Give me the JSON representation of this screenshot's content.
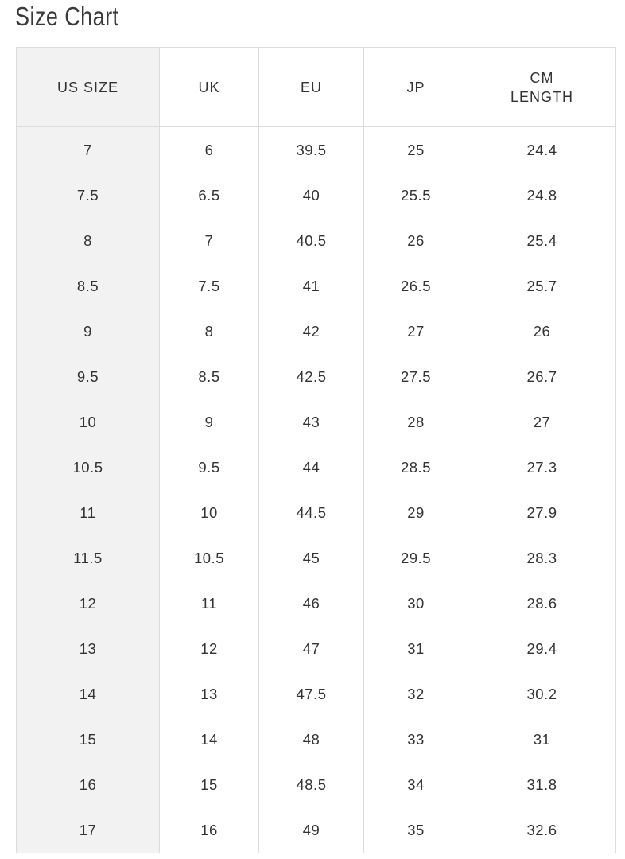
{
  "title": "Size Chart",
  "table": {
    "headers": [
      "US SIZE",
      "UK",
      "EU",
      "JP",
      "CM LENGTH"
    ],
    "rows": [
      [
        "7",
        "6",
        "39.5",
        "25",
        "24.4"
      ],
      [
        "7.5",
        "6.5",
        "40",
        "25.5",
        "24.8"
      ],
      [
        "8",
        "7",
        "40.5",
        "26",
        "25.4"
      ],
      [
        "8.5",
        "7.5",
        "41",
        "26.5",
        "25.7"
      ],
      [
        "9",
        "8",
        "42",
        "27",
        "26"
      ],
      [
        "9.5",
        "8.5",
        "42.5",
        "27.5",
        "26.7"
      ],
      [
        "10",
        "9",
        "43",
        "28",
        "27"
      ],
      [
        "10.5",
        "9.5",
        "44",
        "28.5",
        "27.3"
      ],
      [
        "11",
        "10",
        "44.5",
        "29",
        "27.9"
      ],
      [
        "11.5",
        "10.5",
        "45",
        "29.5",
        "28.3"
      ],
      [
        "12",
        "11",
        "46",
        "30",
        "28.6"
      ],
      [
        "13",
        "12",
        "47",
        "31",
        "29.4"
      ],
      [
        "14",
        "13",
        "47.5",
        "32",
        "30.2"
      ],
      [
        "15",
        "14",
        "48",
        "33",
        "31"
      ],
      [
        "16",
        "15",
        "48.5",
        "34",
        "31.8"
      ],
      [
        "17",
        "16",
        "49",
        "35",
        "32.6"
      ]
    ]
  }
}
